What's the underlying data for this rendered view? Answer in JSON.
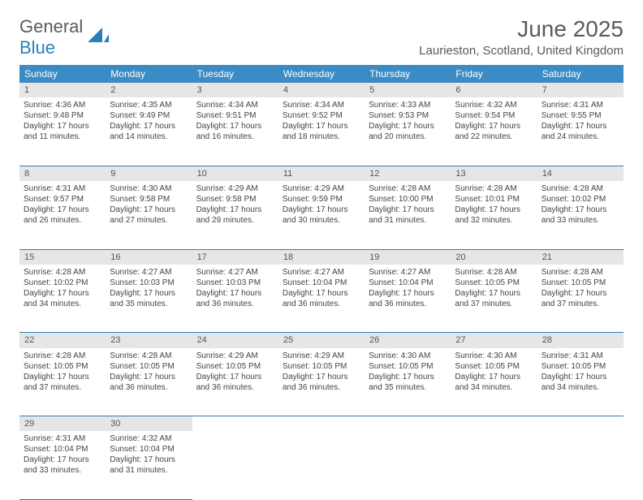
{
  "logo": {
    "text1": "General",
    "text2": "Blue"
  },
  "title": "June 2025",
  "location": "Laurieston, Scotland, United Kingdom",
  "colors": {
    "header_bg": "#3b8bc4",
    "header_text": "#ffffff",
    "daynum_bg": "#e6e6e6",
    "border": "#2a7fba",
    "logo_blue": "#2a7fba",
    "logo_gray": "#5a5a5a"
  },
  "weekdays": [
    "Sunday",
    "Monday",
    "Tuesday",
    "Wednesday",
    "Thursday",
    "Friday",
    "Saturday"
  ],
  "weeks": [
    [
      {
        "n": "1",
        "sr": "Sunrise: 4:36 AM",
        "ss": "Sunset: 9:48 PM",
        "d1": "Daylight: 17 hours",
        "d2": "and 11 minutes."
      },
      {
        "n": "2",
        "sr": "Sunrise: 4:35 AM",
        "ss": "Sunset: 9:49 PM",
        "d1": "Daylight: 17 hours",
        "d2": "and 14 minutes."
      },
      {
        "n": "3",
        "sr": "Sunrise: 4:34 AM",
        "ss": "Sunset: 9:51 PM",
        "d1": "Daylight: 17 hours",
        "d2": "and 16 minutes."
      },
      {
        "n": "4",
        "sr": "Sunrise: 4:34 AM",
        "ss": "Sunset: 9:52 PM",
        "d1": "Daylight: 17 hours",
        "d2": "and 18 minutes."
      },
      {
        "n": "5",
        "sr": "Sunrise: 4:33 AM",
        "ss": "Sunset: 9:53 PM",
        "d1": "Daylight: 17 hours",
        "d2": "and 20 minutes."
      },
      {
        "n": "6",
        "sr": "Sunrise: 4:32 AM",
        "ss": "Sunset: 9:54 PM",
        "d1": "Daylight: 17 hours",
        "d2": "and 22 minutes."
      },
      {
        "n": "7",
        "sr": "Sunrise: 4:31 AM",
        "ss": "Sunset: 9:55 PM",
        "d1": "Daylight: 17 hours",
        "d2": "and 24 minutes."
      }
    ],
    [
      {
        "n": "8",
        "sr": "Sunrise: 4:31 AM",
        "ss": "Sunset: 9:57 PM",
        "d1": "Daylight: 17 hours",
        "d2": "and 26 minutes."
      },
      {
        "n": "9",
        "sr": "Sunrise: 4:30 AM",
        "ss": "Sunset: 9:58 PM",
        "d1": "Daylight: 17 hours",
        "d2": "and 27 minutes."
      },
      {
        "n": "10",
        "sr": "Sunrise: 4:29 AM",
        "ss": "Sunset: 9:58 PM",
        "d1": "Daylight: 17 hours",
        "d2": "and 29 minutes."
      },
      {
        "n": "11",
        "sr": "Sunrise: 4:29 AM",
        "ss": "Sunset: 9:59 PM",
        "d1": "Daylight: 17 hours",
        "d2": "and 30 minutes."
      },
      {
        "n": "12",
        "sr": "Sunrise: 4:28 AM",
        "ss": "Sunset: 10:00 PM",
        "d1": "Daylight: 17 hours",
        "d2": "and 31 minutes."
      },
      {
        "n": "13",
        "sr": "Sunrise: 4:28 AM",
        "ss": "Sunset: 10:01 PM",
        "d1": "Daylight: 17 hours",
        "d2": "and 32 minutes."
      },
      {
        "n": "14",
        "sr": "Sunrise: 4:28 AM",
        "ss": "Sunset: 10:02 PM",
        "d1": "Daylight: 17 hours",
        "d2": "and 33 minutes."
      }
    ],
    [
      {
        "n": "15",
        "sr": "Sunrise: 4:28 AM",
        "ss": "Sunset: 10:02 PM",
        "d1": "Daylight: 17 hours",
        "d2": "and 34 minutes."
      },
      {
        "n": "16",
        "sr": "Sunrise: 4:27 AM",
        "ss": "Sunset: 10:03 PM",
        "d1": "Daylight: 17 hours",
        "d2": "and 35 minutes."
      },
      {
        "n": "17",
        "sr": "Sunrise: 4:27 AM",
        "ss": "Sunset: 10:03 PM",
        "d1": "Daylight: 17 hours",
        "d2": "and 36 minutes."
      },
      {
        "n": "18",
        "sr": "Sunrise: 4:27 AM",
        "ss": "Sunset: 10:04 PM",
        "d1": "Daylight: 17 hours",
        "d2": "and 36 minutes."
      },
      {
        "n": "19",
        "sr": "Sunrise: 4:27 AM",
        "ss": "Sunset: 10:04 PM",
        "d1": "Daylight: 17 hours",
        "d2": "and 36 minutes."
      },
      {
        "n": "20",
        "sr": "Sunrise: 4:28 AM",
        "ss": "Sunset: 10:05 PM",
        "d1": "Daylight: 17 hours",
        "d2": "and 37 minutes."
      },
      {
        "n": "21",
        "sr": "Sunrise: 4:28 AM",
        "ss": "Sunset: 10:05 PM",
        "d1": "Daylight: 17 hours",
        "d2": "and 37 minutes."
      }
    ],
    [
      {
        "n": "22",
        "sr": "Sunrise: 4:28 AM",
        "ss": "Sunset: 10:05 PM",
        "d1": "Daylight: 17 hours",
        "d2": "and 37 minutes."
      },
      {
        "n": "23",
        "sr": "Sunrise: 4:28 AM",
        "ss": "Sunset: 10:05 PM",
        "d1": "Daylight: 17 hours",
        "d2": "and 36 minutes."
      },
      {
        "n": "24",
        "sr": "Sunrise: 4:29 AM",
        "ss": "Sunset: 10:05 PM",
        "d1": "Daylight: 17 hours",
        "d2": "and 36 minutes."
      },
      {
        "n": "25",
        "sr": "Sunrise: 4:29 AM",
        "ss": "Sunset: 10:05 PM",
        "d1": "Daylight: 17 hours",
        "d2": "and 36 minutes."
      },
      {
        "n": "26",
        "sr": "Sunrise: 4:30 AM",
        "ss": "Sunset: 10:05 PM",
        "d1": "Daylight: 17 hours",
        "d2": "and 35 minutes."
      },
      {
        "n": "27",
        "sr": "Sunrise: 4:30 AM",
        "ss": "Sunset: 10:05 PM",
        "d1": "Daylight: 17 hours",
        "d2": "and 34 minutes."
      },
      {
        "n": "28",
        "sr": "Sunrise: 4:31 AM",
        "ss": "Sunset: 10:05 PM",
        "d1": "Daylight: 17 hours",
        "d2": "and 34 minutes."
      }
    ],
    [
      {
        "n": "29",
        "sr": "Sunrise: 4:31 AM",
        "ss": "Sunset: 10:04 PM",
        "d1": "Daylight: 17 hours",
        "d2": "and 33 minutes."
      },
      {
        "n": "30",
        "sr": "Sunrise: 4:32 AM",
        "ss": "Sunset: 10:04 PM",
        "d1": "Daylight: 17 hours",
        "d2": "and 31 minutes."
      },
      null,
      null,
      null,
      null,
      null
    ]
  ]
}
